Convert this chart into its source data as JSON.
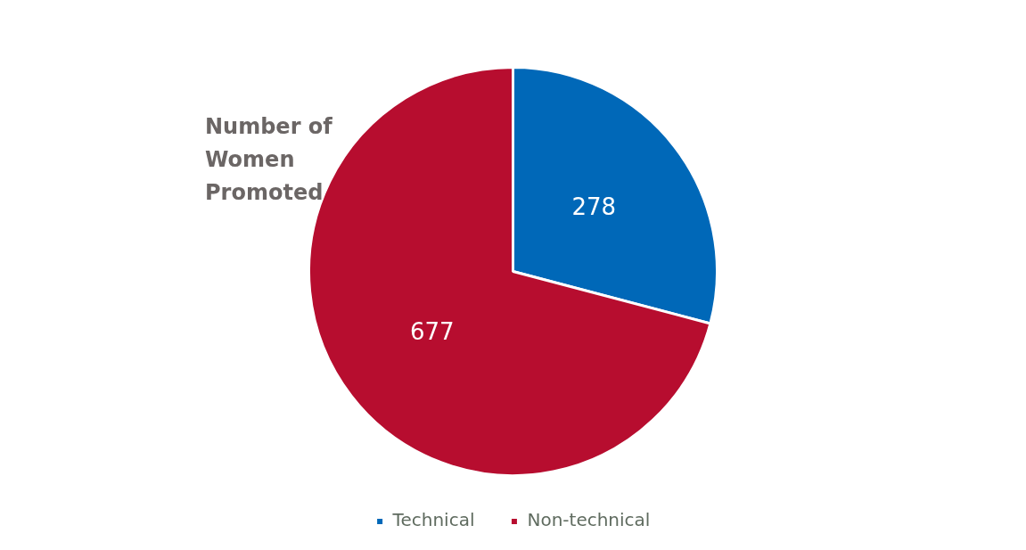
{
  "chart_data": {
    "type": "pie",
    "title": "Number of Women Promoted",
    "categories": [
      "Technical",
      "Non-technical"
    ],
    "values": [
      278,
      677
    ],
    "colors": [
      "#0068b8",
      "#b70d2f"
    ],
    "data_labels": true,
    "legend": "bottom"
  }
}
